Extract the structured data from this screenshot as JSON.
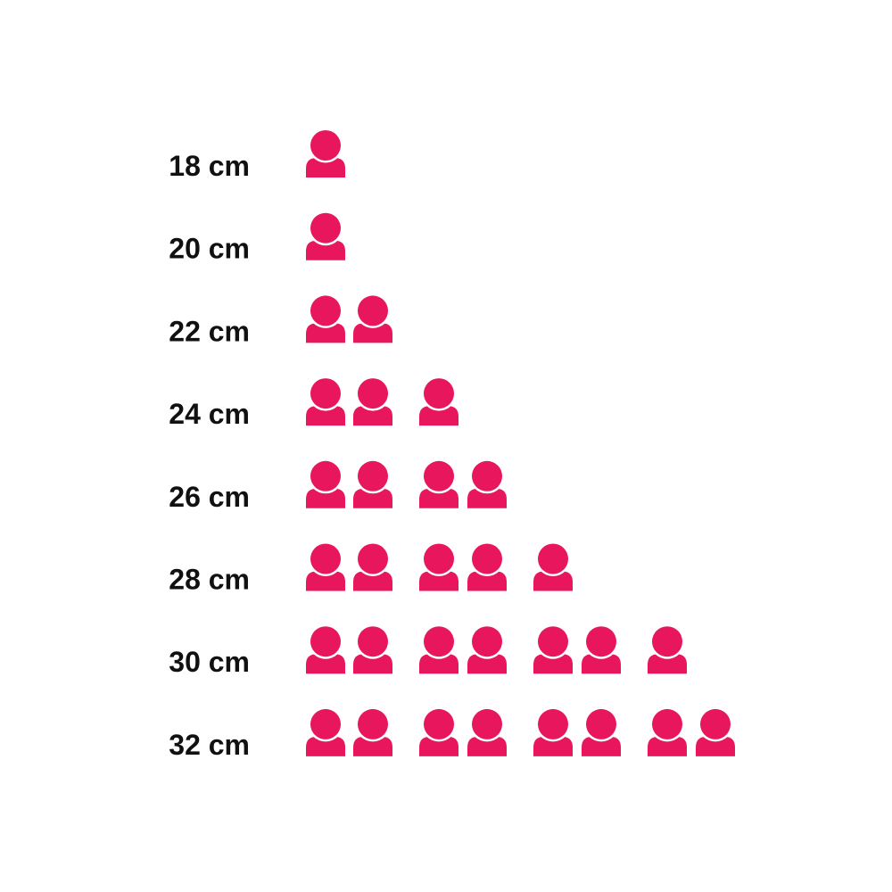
{
  "chart_data": {
    "type": "pictogram",
    "categories": [
      "18 cm",
      "20 cm",
      "22 cm",
      "24 cm",
      "26 cm",
      "28 cm",
      "30 cm",
      "32 cm"
    ],
    "values": [
      1,
      1,
      2,
      3,
      4,
      5,
      7,
      8
    ],
    "icon": "person-icon",
    "icon_color": "#E8175D",
    "title": "",
    "xlabel": "",
    "ylabel": ""
  }
}
